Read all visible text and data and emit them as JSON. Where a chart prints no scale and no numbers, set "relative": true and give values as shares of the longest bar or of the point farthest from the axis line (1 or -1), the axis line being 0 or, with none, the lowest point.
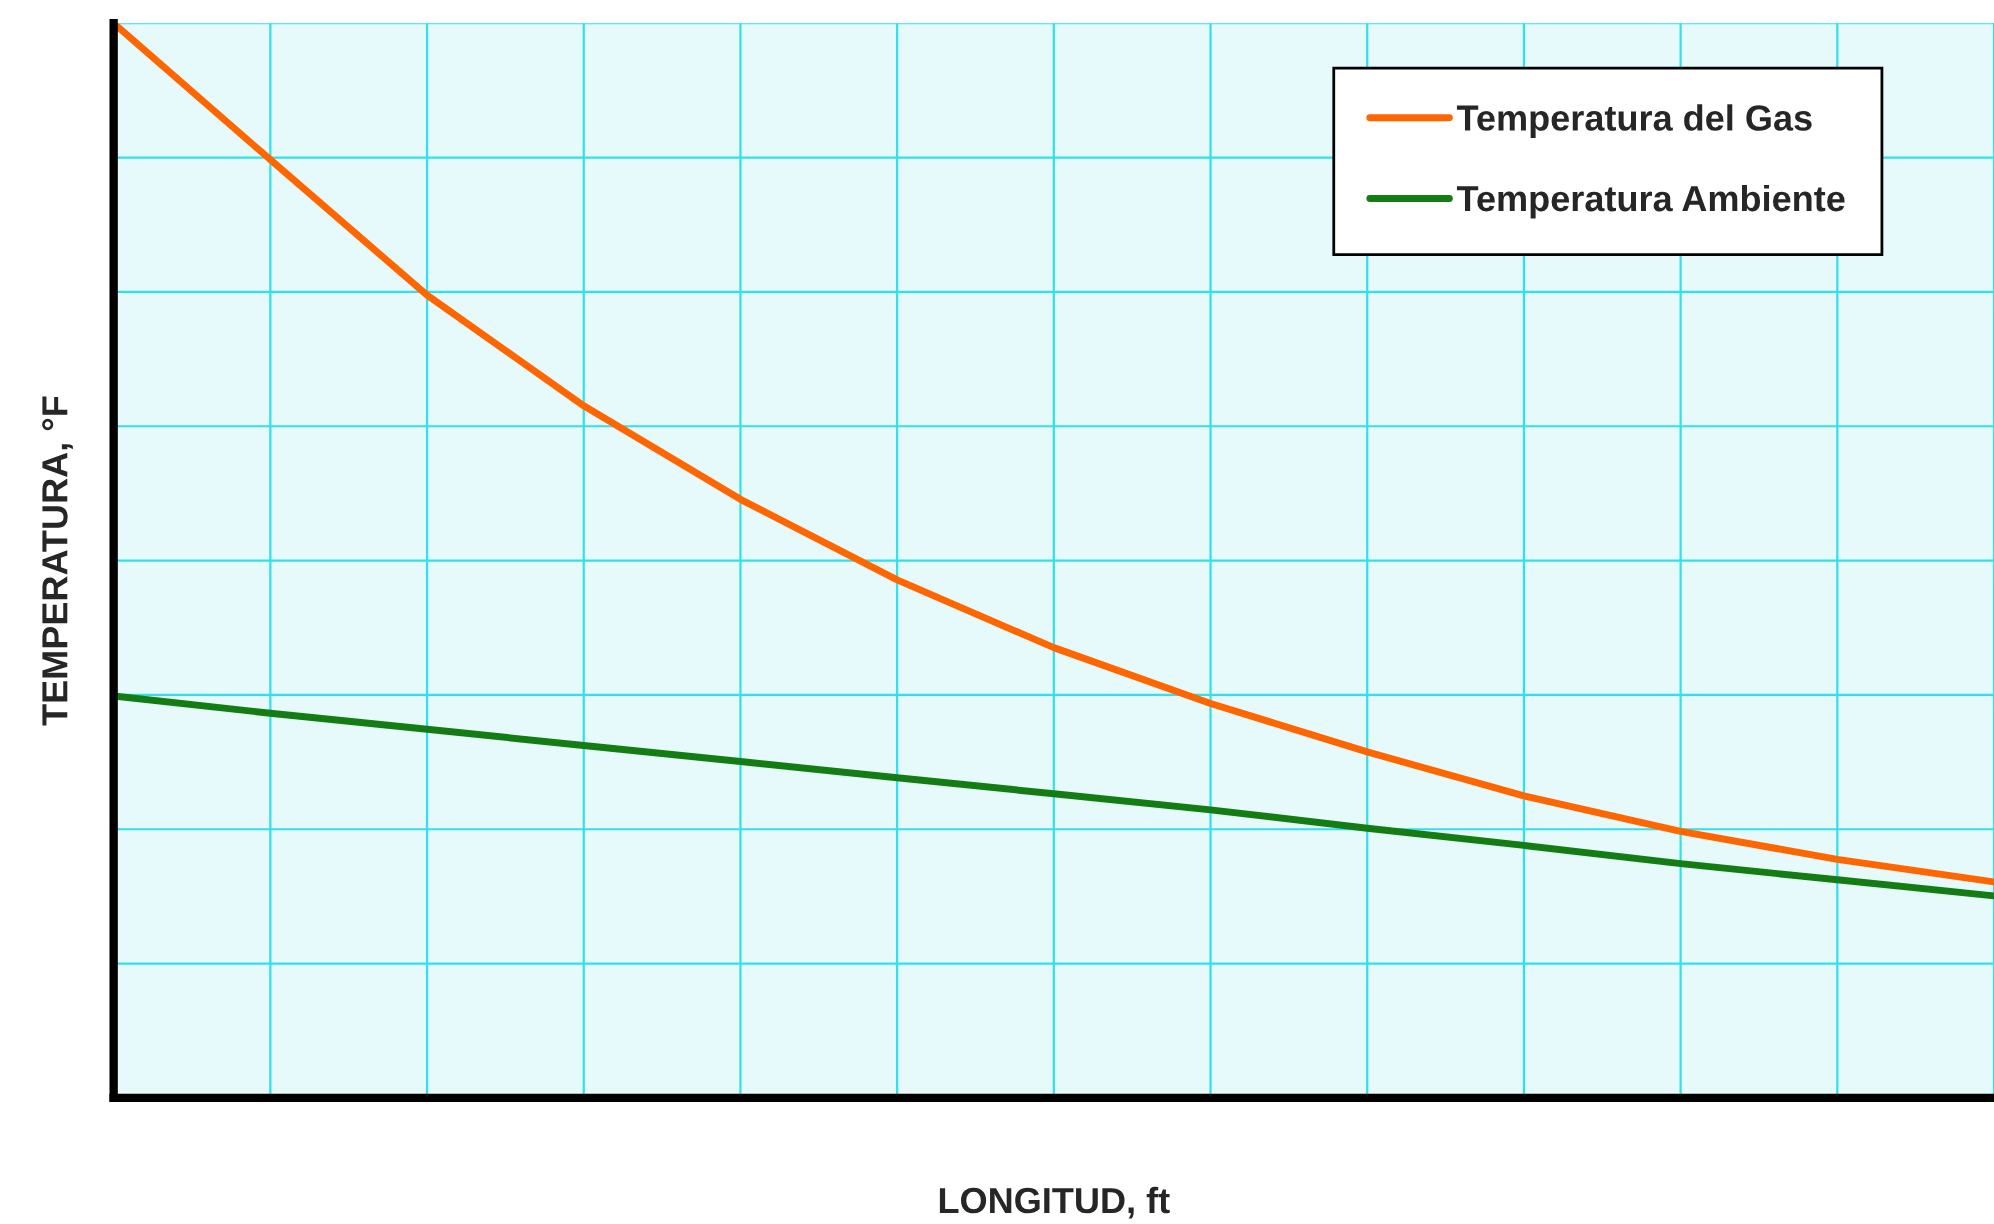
{
  "chart_data": {
    "type": "line",
    "relative": true,
    "xlabel": "LONGITUD, ft",
    "ylabel": "TEMPERATURA, °F",
    "categories": [
      null,
      null,
      null,
      null,
      null,
      null,
      null,
      null,
      null,
      null,
      null,
      null,
      null
    ],
    "series": [
      {
        "name": "Temperatura del Gas",
        "color": "#ff6600",
        "values": [
          1.0,
          0.873,
          0.747,
          0.644,
          0.557,
          0.482,
          0.419,
          0.367,
          0.322,
          0.281,
          0.248,
          0.222,
          0.201
        ]
      },
      {
        "name": "Temperatura Ambiente",
        "color": "#137d13",
        "values": [
          0.374,
          0.358,
          0.343,
          0.328,
          0.313,
          0.298,
          0.283,
          0.268,
          0.251,
          0.235,
          0.218,
          0.203,
          0.188
        ]
      }
    ],
    "grid": true,
    "legend": "top right",
    "tick_labels": false,
    "marker": "none",
    "line_style": "solid"
  }
}
